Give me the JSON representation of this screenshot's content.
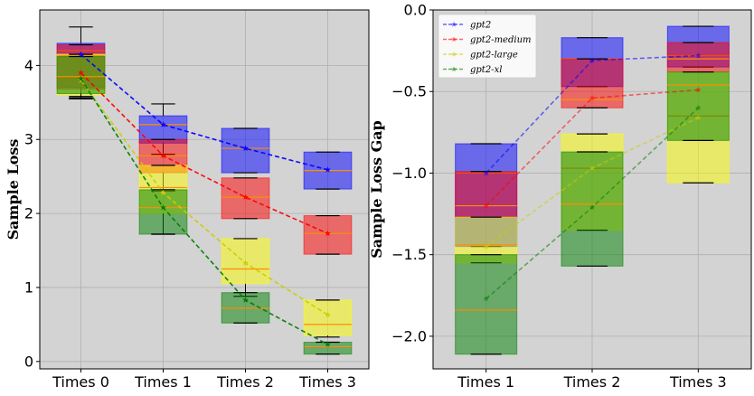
{
  "chart_data": [
    {
      "type": "box",
      "title": "",
      "xlabel": "",
      "ylabel": "Sample Loss",
      "categories": [
        "Times 0",
        "Times 1",
        "Times 2",
        "Times 3"
      ],
      "ylim": [
        -0.1,
        4.75
      ],
      "yticks": [
        0,
        1,
        2,
        3,
        4
      ],
      "grid": true,
      "background": "#d3d3d3",
      "series": [
        {
          "name": "gpt2",
          "color": "#0000ff",
          "boxes": [
            {
              "low": 3.55,
              "q1": 3.7,
              "median": 4.2,
              "q3": 4.3,
              "high": 4.52
            },
            {
              "low": 2.8,
              "q1": 2.95,
              "median": 3.2,
              "q3": 3.32,
              "high": 3.48
            },
            {
              "low": 2.55,
              "q1": 2.55,
              "median": 2.88,
              "q3": 3.15,
              "high": 3.15
            },
            {
              "low": 2.33,
              "q1": 2.33,
              "median": 2.58,
              "q3": 2.83,
              "high": 2.83
            }
          ],
          "means": [
            4.15,
            3.2,
            2.88,
            2.59
          ]
        },
        {
          "name": "gpt2-medium",
          "color": "#ff0000",
          "boxes": [
            {
              "low": 3.58,
              "q1": 3.68,
              "median": 4.15,
              "q3": 4.28,
              "high": 4.28
            },
            {
              "low": 2.3,
              "q1": 2.55,
              "median": 2.78,
              "q3": 3.0,
              "high": 3.0
            },
            {
              "low": 1.93,
              "q1": 1.93,
              "median": 2.22,
              "q3": 2.48,
              "high": 2.48
            },
            {
              "low": 1.45,
              "q1": 1.45,
              "median": 1.73,
              "q3": 1.97,
              "high": 1.97
            }
          ],
          "means": [
            3.9,
            2.78,
            2.22,
            1.73
          ]
        },
        {
          "name": "gpt2-large",
          "color": "#ffff00",
          "boxes": [
            {
              "low": 3.55,
              "q1": 3.6,
              "median": 3.82,
              "q3": 4.15,
              "high": 4.15
            },
            {
              "low": 1.72,
              "q1": 2.0,
              "median": 2.35,
              "q3": 2.65,
              "high": 2.65
            },
            {
              "low": 0.88,
              "q1": 1.05,
              "median": 1.25,
              "q3": 1.66,
              "high": 1.66
            },
            {
              "low": 0.33,
              "q1": 0.35,
              "median": 0.5,
              "q3": 0.83,
              "high": 0.83
            }
          ],
          "means": [
            3.8,
            2.28,
            1.33,
            0.63
          ]
        },
        {
          "name": "gpt2-xl",
          "color": "#008000",
          "boxes": [
            {
              "low": 3.56,
              "q1": 3.62,
              "median": 3.85,
              "q3": 4.12,
              "high": 4.12
            },
            {
              "low": 1.72,
              "q1": 1.72,
              "median": 2.08,
              "q3": 2.32,
              "high": 2.32
            },
            {
              "low": 0.52,
              "q1": 0.52,
              "median": 0.72,
              "q3": 0.93,
              "high": 0.93
            },
            {
              "low": 0.1,
              "q1": 0.1,
              "median": 0.2,
              "q3": 0.26,
              "high": 0.26
            }
          ],
          "means": [
            3.82,
            2.08,
            0.83,
            0.23
          ]
        }
      ]
    },
    {
      "type": "box",
      "title": "",
      "xlabel": "",
      "ylabel": "Sample Loss Gap",
      "categories": [
        "Times 1",
        "Times 2",
        "Times 3"
      ],
      "ylim": [
        -2.2,
        0.0
      ],
      "yticks": [
        -2.0,
        -1.5,
        -1.0,
        -0.5,
        0.0
      ],
      "grid": true,
      "background": "#d3d3d3",
      "legend": "top-left",
      "series": [
        {
          "name": "gpt2",
          "color": "#0000ff",
          "boxes": [
            {
              "low": -1.45,
              "q1": -1.45,
              "median": -1.0,
              "q3": -0.82,
              "high": -0.82
            },
            {
              "low": -0.47,
              "q1": -0.47,
              "median": -0.3,
              "q3": -0.17,
              "high": -0.17
            },
            {
              "low": -0.35,
              "q1": -0.35,
              "median": -0.28,
              "q3": -0.1,
              "high": -0.1
            }
          ],
          "means": [
            -1.0,
            -0.31,
            -0.28
          ]
        },
        {
          "name": "gpt2-medium",
          "color": "#ff0000",
          "boxes": [
            {
              "low": -1.27,
              "q1": -1.27,
              "median": -1.2,
              "q3": -0.99,
              "high": -0.99
            },
            {
              "low": -0.6,
              "q1": -0.6,
              "median": -0.55,
              "q3": -0.3,
              "high": -0.3
            },
            {
              "low": -0.38,
              "q1": -0.38,
              "median": -0.3,
              "q3": -0.2,
              "high": -0.2
            }
          ],
          "means": [
            -1.2,
            -0.54,
            -0.49
          ]
        },
        {
          "name": "gpt2-large",
          "color": "#ffff00",
          "boxes": [
            {
              "low": -1.55,
              "q1": -1.55,
              "median": -1.44,
              "q3": -1.27,
              "high": -1.27
            },
            {
              "low": -1.35,
              "q1": -1.35,
              "median": -0.97,
              "q3": -0.76,
              "high": -0.76
            },
            {
              "low": -1.06,
              "q1": -1.06,
              "median": -0.65,
              "q3": -0.38,
              "high": -0.38
            }
          ],
          "means": [
            -1.45,
            -0.97,
            -0.66
          ]
        },
        {
          "name": "gpt2-xl",
          "color": "#008000",
          "boxes": [
            {
              "low": -2.11,
              "q1": -2.11,
              "median": -1.84,
              "q3": -1.5,
              "high": -1.5
            },
            {
              "low": -1.57,
              "q1": -1.57,
              "median": -1.19,
              "q3": -0.87,
              "high": -0.87
            },
            {
              "low": -0.8,
              "q1": -0.8,
              "median": -0.46,
              "q3": -0.38,
              "high": -0.38
            }
          ],
          "means": [
            -1.77,
            -1.21,
            -0.6
          ]
        }
      ]
    }
  ]
}
